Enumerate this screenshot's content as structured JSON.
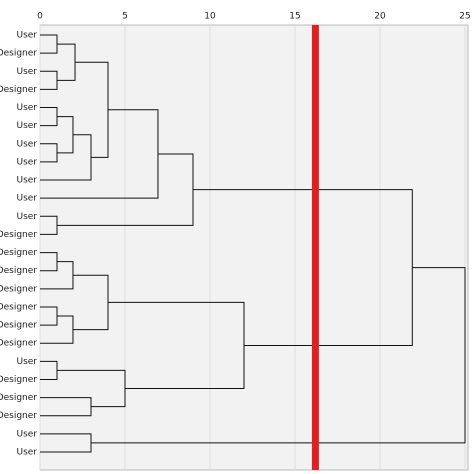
{
  "chart_data": {
    "type": "dendrogram",
    "leaves": [
      "User",
      "Designer",
      "User",
      "Designer",
      "User",
      "User",
      "User",
      "User",
      "User",
      "User",
      "User",
      "Designer",
      "Designer",
      "Designer",
      "Designer",
      "Designer",
      "Designer",
      "Designer",
      "User",
      "Designer",
      "Designer",
      "Designer",
      "User",
      "User"
    ],
    "merges": [
      {
        "left": 0,
        "right": 1,
        "height": 1
      },
      {
        "left": 2,
        "right": 3,
        "height": 1
      },
      {
        "left": 24,
        "right": 25,
        "height": 2.06
      },
      {
        "left": 4,
        "right": 5,
        "height": 1
      },
      {
        "left": 6,
        "right": 7,
        "height": 1
      },
      {
        "left": 27,
        "right": 28,
        "height": 1.94
      },
      {
        "left": 29,
        "right": 8,
        "height": 3
      },
      {
        "left": 26,
        "right": 30,
        "height": 4
      },
      {
        "left": 31,
        "right": 9,
        "height": 6.94
      },
      {
        "left": 10,
        "right": 11,
        "height": 1
      },
      {
        "left": 32,
        "right": 33,
        "height": 9
      },
      {
        "left": 12,
        "right": 13,
        "height": 1
      },
      {
        "left": 35,
        "right": 14,
        "height": 1.94
      },
      {
        "left": 15,
        "right": 16,
        "height": 1
      },
      {
        "left": 37,
        "right": 17,
        "height": 1.94
      },
      {
        "left": 36,
        "right": 38,
        "height": 4
      },
      {
        "left": 18,
        "right": 19,
        "height": 1
      },
      {
        "left": 20,
        "right": 21,
        "height": 3
      },
      {
        "left": 40,
        "right": 41,
        "height": 5
      },
      {
        "left": 39,
        "right": 42,
        "height": 12
      },
      {
        "left": 34,
        "right": 43,
        "height": 21.9
      },
      {
        "left": 22,
        "right": 23,
        "height": 3
      },
      {
        "left": 44,
        "right": 45,
        "height": 25
      }
    ],
    "xlim": [
      0,
      25
    ],
    "xticks": [
      0,
      5,
      10,
      15,
      20,
      25
    ],
    "grid": true,
    "cut": 16.2,
    "cut_color": "#e02020",
    "line_color": "#111111"
  }
}
